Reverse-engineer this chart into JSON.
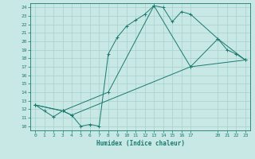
{
  "xlabel": "Humidex (Indice chaleur)",
  "bg_color": "#c8e8e5",
  "grid_color": "#a8d0cc",
  "line_color": "#1a7a6e",
  "xlim": [
    -0.5,
    23.5
  ],
  "ylim": [
    9.5,
    24.5
  ],
  "xticks": [
    0,
    1,
    2,
    3,
    4,
    5,
    6,
    7,
    8,
    9,
    10,
    11,
    12,
    13,
    14,
    15,
    16,
    17,
    20,
    21,
    22,
    23
  ],
  "yticks": [
    10,
    11,
    12,
    13,
    14,
    15,
    16,
    17,
    18,
    19,
    20,
    21,
    22,
    23,
    24
  ],
  "line1_x": [
    0,
    1,
    2,
    3,
    4,
    5,
    6,
    7,
    8,
    9,
    10,
    11,
    12,
    13,
    14,
    15,
    16,
    17,
    20,
    21,
    22,
    23
  ],
  "line1_y": [
    12.5,
    11.8,
    11.1,
    11.8,
    11.3,
    10.0,
    10.2,
    10.0,
    18.5,
    20.5,
    21.8,
    22.5,
    23.2,
    24.2,
    24.0,
    22.3,
    23.5,
    23.2,
    20.3,
    19.0,
    18.5,
    17.8
  ],
  "line2_x": [
    0,
    3,
    4,
    17,
    23
  ],
  "line2_y": [
    12.5,
    11.8,
    11.3,
    17.0,
    17.8
  ],
  "line3_x": [
    0,
    3,
    8,
    13,
    17,
    20,
    23
  ],
  "line3_y": [
    12.5,
    11.8,
    14.0,
    24.2,
    17.0,
    20.3,
    17.8
  ]
}
